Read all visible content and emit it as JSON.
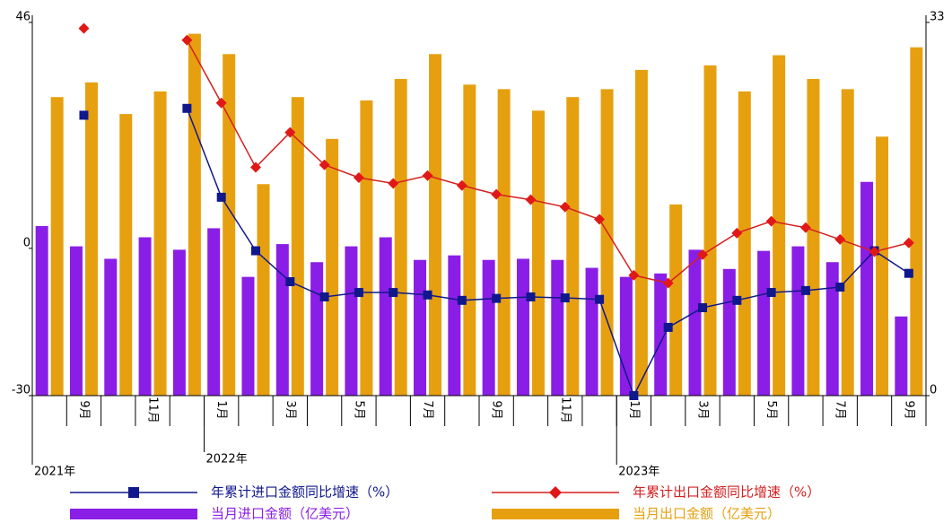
{
  "chart_data": {
    "type": "bar",
    "categories": [
      null,
      "9月",
      null,
      "11月",
      null,
      "1月",
      null,
      "3月",
      null,
      "5月",
      null,
      "7月",
      null,
      "9月",
      null,
      "11月",
      null,
      "1月",
      null,
      "3月",
      null,
      "5月",
      null,
      "7月",
      null,
      "9月"
    ],
    "annotations": [
      "2021年",
      "2022年",
      "2023年"
    ],
    "ylim": [
      -30,
      46
    ],
    "yticks": [
      -30,
      0,
      46
    ],
    "y2lim": [
      0,
      33
    ],
    "y2ticks": [
      0,
      33
    ],
    "series": [
      {
        "name": "当月进口金额（亿美元）",
        "type": "bar",
        "axis": "y2",
        "color": "#8a1ee6",
        "values": [
          15.0,
          13.2,
          12.1,
          14.0,
          12.9,
          14.8,
          10.5,
          13.4,
          11.8,
          13.2,
          14.0,
          12.0,
          12.4,
          12.0,
          12.1,
          12.0,
          11.3,
          10.5,
          10.8,
          12.9,
          11.2,
          12.8,
          13.2,
          11.8,
          18.9,
          7.0
        ]
      },
      {
        "name": "当月出口金额（亿美元）",
        "type": "bar",
        "axis": "y2",
        "color": "#e6a00f",
        "values": [
          26.4,
          27.7,
          24.9,
          26.9,
          32.0,
          30.2,
          18.7,
          26.4,
          22.7,
          26.1,
          28.0,
          30.2,
          27.5,
          27.1,
          25.2,
          26.4,
          27.1,
          28.8,
          16.9,
          29.2,
          26.9,
          30.1,
          28.0,
          27.1,
          22.9,
          30.8
        ]
      },
      {
        "name": "年累计进口金额同比增速（%）",
        "type": "line",
        "color": "#10188c",
        "values": [
          null,
          27.1,
          null,
          null,
          28.5,
          10.4,
          -0.5,
          -6.8,
          -9.9,
          -9.0,
          -9.0,
          -9.5,
          -10.6,
          -10.2,
          -9.9,
          -10.1,
          -10.4,
          -30.0,
          -16.1,
          -12.1,
          -10.6,
          -9.0,
          -8.6,
          -7.9,
          -0.5,
          -5.1
        ]
      },
      {
        "name": "年累计出口金额同比增速（%）",
        "type": "line",
        "color": "#d42020",
        "values": [
          null,
          44.8,
          null,
          null,
          42.4,
          29.6,
          16.5,
          23.6,
          17.0,
          14.4,
          13.2,
          14.8,
          12.8,
          11.0,
          9.9,
          8.4,
          5.9,
          -5.5,
          -7.1,
          -1.3,
          3.1,
          5.5,
          4.2,
          1.8,
          -0.7,
          1.1
        ]
      }
    ]
  }
}
